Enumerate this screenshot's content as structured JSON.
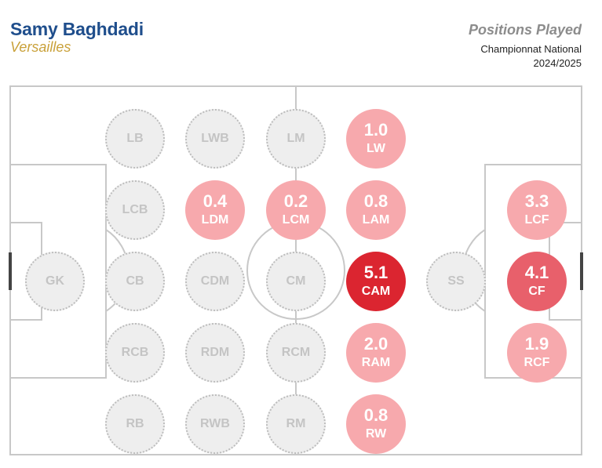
{
  "header": {
    "player": "Samy Baghdadi",
    "club": "Versailles",
    "title": "Positions Played",
    "competition": "Championnat National",
    "season": "2024/2025"
  },
  "colors": {
    "player_name": "#1f4e8c",
    "club_name": "#c9a13a",
    "empty_fill": "#eeeeee",
    "empty_border": "#bdbdbd",
    "low": "#f7a9ad",
    "mid": "#e8606b",
    "high": "#db2530"
  },
  "positions": [
    {
      "label": "GK",
      "value": null
    },
    {
      "label": "LB",
      "value": null
    },
    {
      "label": "LCB",
      "value": null
    },
    {
      "label": "CB",
      "value": null
    },
    {
      "label": "RCB",
      "value": null
    },
    {
      "label": "RB",
      "value": null
    },
    {
      "label": "LWB",
      "value": null
    },
    {
      "label": "LDM",
      "value": "0.4"
    },
    {
      "label": "CDM",
      "value": null
    },
    {
      "label": "RDM",
      "value": null
    },
    {
      "label": "RWB",
      "value": null
    },
    {
      "label": "LM",
      "value": null
    },
    {
      "label": "LCM",
      "value": "0.2"
    },
    {
      "label": "CM",
      "value": null
    },
    {
      "label": "RCM",
      "value": null
    },
    {
      "label": "RM",
      "value": null
    },
    {
      "label": "LW",
      "value": "1.0"
    },
    {
      "label": "LAM",
      "value": "0.8"
    },
    {
      "label": "CAM",
      "value": "5.1"
    },
    {
      "label": "RAM",
      "value": "2.0"
    },
    {
      "label": "RW",
      "value": "0.8"
    },
    {
      "label": "SS",
      "value": null
    },
    {
      "label": "LCF",
      "value": "3.3"
    },
    {
      "label": "CF",
      "value": "4.1"
    },
    {
      "label": "RCF",
      "value": "1.9"
    }
  ]
}
